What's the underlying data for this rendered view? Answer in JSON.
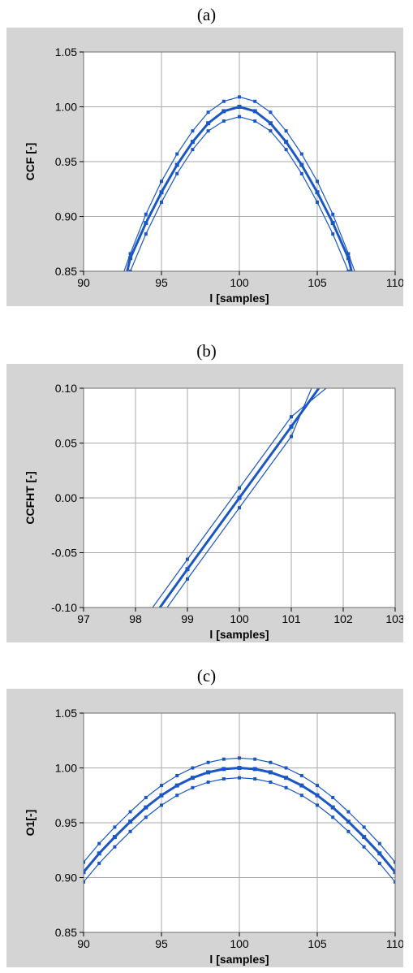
{
  "panels": [
    {
      "caption": "(a)"
    },
    {
      "caption": "(b)"
    },
    {
      "caption": "(c)"
    }
  ],
  "chart_data": [
    {
      "type": "line",
      "xlabel": "l [samples]",
      "ylabel": "CCF [-]",
      "xlim": [
        90,
        110
      ],
      "ylim": [
        0.85,
        1.05
      ],
      "xticks": [
        90,
        95,
        100,
        105,
        110
      ],
      "yticks": [
        0.85,
        0.9,
        0.95,
        1.0,
        1.05
      ],
      "ytick_labels": [
        "0.85",
        "0.90",
        "0.95",
        "1.00",
        "1.05"
      ],
      "grid": true,
      "line_color": "#1a56c4",
      "series": [
        {
          "x": [
            92.8,
            93,
            94,
            95,
            96,
            97,
            98,
            99,
            100,
            101,
            102,
            103,
            104,
            105,
            106,
            107,
            107.2
          ],
          "y": [
            0.85,
            0.862,
            0.894,
            0.922,
            0.947,
            0.968,
            0.985,
            0.996,
            1.0,
            0.996,
            0.985,
            0.968,
            0.947,
            0.922,
            0.894,
            0.862,
            0.85
          ],
          "weight": "thick"
        },
        {
          "x": [
            92.6,
            93,
            94,
            95,
            96,
            97,
            98,
            99,
            100,
            101,
            102,
            103,
            104,
            105,
            106,
            107,
            107.4
          ],
          "y": [
            0.85,
            0.866,
            0.902,
            0.932,
            0.957,
            0.978,
            0.995,
            1.005,
            1.009,
            1.005,
            0.995,
            0.978,
            0.957,
            0.932,
            0.902,
            0.866,
            0.85
          ],
          "weight": "thin"
        },
        {
          "x": [
            93.0,
            94,
            95,
            96,
            97,
            98,
            99,
            100,
            101,
            102,
            103,
            104,
            105,
            106,
            107.0
          ],
          "y": [
            0.85,
            0.884,
            0.913,
            0.939,
            0.961,
            0.978,
            0.987,
            0.991,
            0.987,
            0.978,
            0.961,
            0.939,
            0.913,
            0.884,
            0.85
          ],
          "weight": "thin"
        }
      ]
    },
    {
      "type": "line",
      "xlabel": "l [samples]",
      "ylabel": "CCFHT [-]",
      "xlim": [
        97,
        103
      ],
      "ylim": [
        -0.1,
        0.1
      ],
      "xticks": [
        97,
        98,
        99,
        100,
        101,
        102,
        103
      ],
      "yticks": [
        -0.1,
        -0.05,
        0.0,
        0.05,
        0.1
      ],
      "ytick_labels": [
        "-0.10",
        "-0.05",
        "0.00",
        "0.05",
        "0.10"
      ],
      "grid": true,
      "line_color": "#1a56c4",
      "series": [
        {
          "x": [
            98.47,
            99,
            100,
            101,
            101.53
          ],
          "y": [
            -0.1,
            -0.065,
            0.0,
            0.065,
            0.1
          ],
          "weight": "thick"
        },
        {
          "x": [
            98.33,
            99,
            100,
            101,
            101.67
          ],
          "y": [
            -0.1,
            -0.056,
            0.009,
            0.074,
            0.1
          ],
          "weight": "thin"
        },
        {
          "x": [
            98.61,
            99,
            100,
            101,
            101.39
          ],
          "y": [
            -0.1,
            -0.074,
            -0.009,
            0.056,
            0.1
          ],
          "weight": "thin"
        }
      ]
    },
    {
      "type": "line",
      "xlabel": "l [samples]",
      "ylabel": "O1[-]",
      "xlim": [
        90,
        110
      ],
      "ylim": [
        0.85,
        1.05
      ],
      "xticks": [
        90,
        95,
        100,
        105,
        110
      ],
      "yticks": [
        0.85,
        0.9,
        0.95,
        1.0,
        1.05
      ],
      "ytick_labels": [
        "0.85",
        "0.90",
        "0.95",
        "1.00",
        "1.05"
      ],
      "grid": true,
      "line_color": "#1a56c4",
      "series": [
        {
          "x": [
            90,
            91,
            92,
            93,
            94,
            95,
            96,
            97,
            98,
            99,
            100,
            101,
            102,
            103,
            104,
            105,
            106,
            107,
            108,
            109,
            110
          ],
          "y": [
            0.905,
            0.922,
            0.937,
            0.951,
            0.964,
            0.975,
            0.984,
            0.991,
            0.996,
            0.999,
            1.0,
            0.999,
            0.996,
            0.991,
            0.984,
            0.975,
            0.964,
            0.951,
            0.937,
            0.922,
            0.905
          ],
          "weight": "thick"
        },
        {
          "x": [
            90,
            91,
            92,
            93,
            94,
            95,
            96,
            97,
            98,
            99,
            100,
            101,
            102,
            103,
            104,
            105,
            106,
            107,
            108,
            109,
            110
          ],
          "y": [
            0.914,
            0.931,
            0.946,
            0.96,
            0.973,
            0.984,
            0.993,
            1.0,
            1.005,
            1.008,
            1.009,
            1.008,
            1.005,
            1.0,
            0.993,
            0.984,
            0.973,
            0.96,
            0.946,
            0.931,
            0.914
          ],
          "weight": "thin"
        },
        {
          "x": [
            90,
            91,
            92,
            93,
            94,
            95,
            96,
            97,
            98,
            99,
            100,
            101,
            102,
            103,
            104,
            105,
            106,
            107,
            108,
            109,
            110
          ],
          "y": [
            0.896,
            0.913,
            0.928,
            0.942,
            0.955,
            0.966,
            0.975,
            0.982,
            0.987,
            0.99,
            0.991,
            0.99,
            0.987,
            0.982,
            0.975,
            0.966,
            0.955,
            0.942,
            0.928,
            0.913,
            0.896
          ],
          "weight": "thin"
        }
      ]
    }
  ]
}
